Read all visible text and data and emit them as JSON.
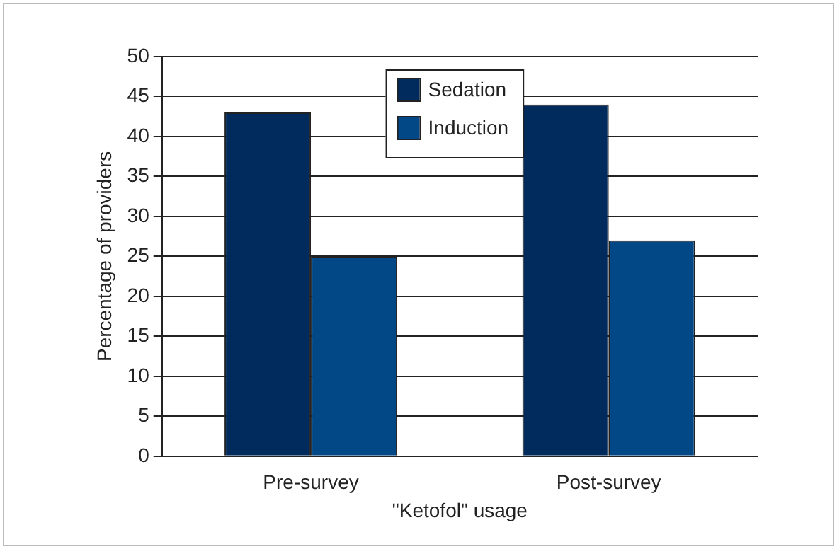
{
  "chart_data": {
    "type": "bar",
    "xlabel": "\"Ketofol\" usage",
    "ylabel": "Percentage of providers",
    "categories": [
      "Pre-survey",
      "Post-survey"
    ],
    "series": [
      {
        "name": "Sedation",
        "color": "#002b5c",
        "values": [
          43,
          44
        ]
      },
      {
        "name": "Induction",
        "color": "#024786",
        "values": [
          25,
          27
        ]
      }
    ],
    "ylim": [
      0,
      50
    ],
    "yticks": [
      0,
      5,
      10,
      15,
      20,
      25,
      30,
      35,
      40,
      45,
      50
    ],
    "grid": "y",
    "legend": "top"
  }
}
